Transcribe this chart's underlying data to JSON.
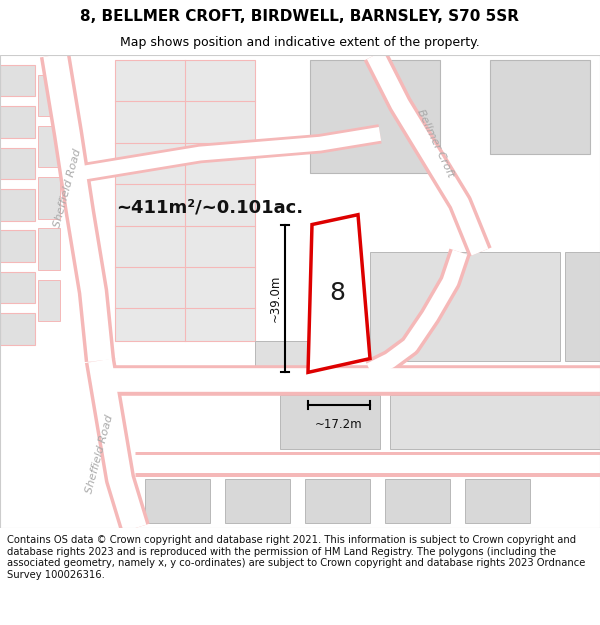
{
  "title": "8, BELLMER CROFT, BIRDWELL, BARNSLEY, S70 5SR",
  "subtitle": "Map shows position and indicative extent of the property.",
  "footer": "Contains OS data © Crown copyright and database right 2021. This information is subject to Crown copyright and database rights 2023 and is reproduced with the permission of HM Land Registry. The polygons (including the associated geometry, namely x, y co-ordinates) are subject to Crown copyright and database rights 2023 Ordnance Survey 100026316.",
  "area_label": "~411m²/~0.101ac.",
  "width_label": "~17.2m",
  "height_label": "~39.0m",
  "property_number": "8",
  "bg_color": "#f2f2f2",
  "road_fill": "#ffffff",
  "building_color": "#d8d8d8",
  "building_outline": "#b8b8b8",
  "red_line_color": "#dd0000",
  "pink_road_color": "#f5b8b8",
  "title_fontsize": 11,
  "subtitle_fontsize": 9,
  "footer_fontsize": 7.2,
  "street_label_color": "#aaaaaa",
  "street_label_size": 8
}
